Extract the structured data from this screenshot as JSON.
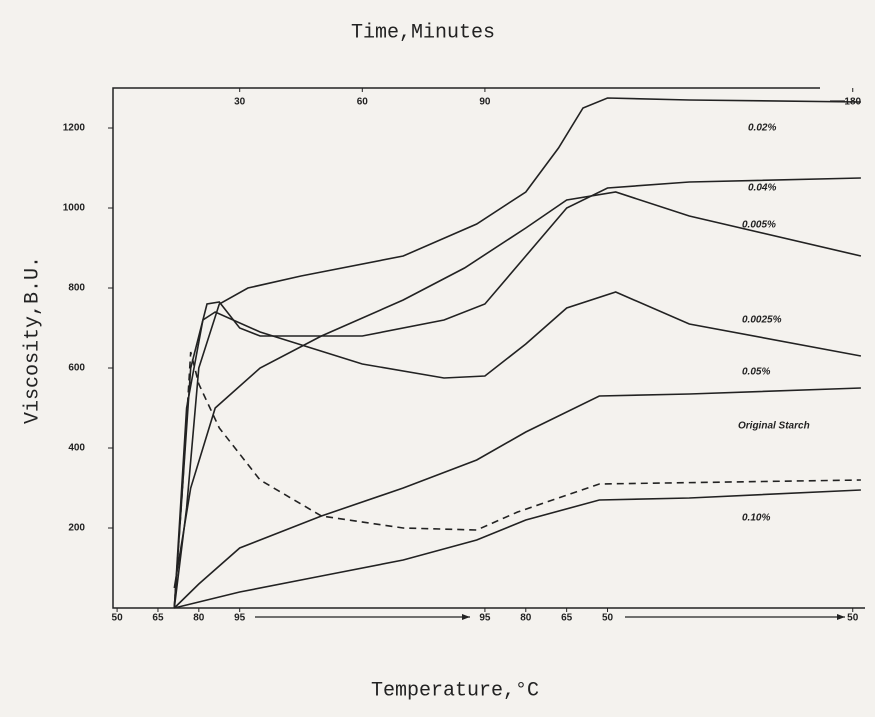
{
  "chart_data": {
    "type": "line",
    "title": "Time,Minutes",
    "xlabel": "Temperature,°C",
    "ylabel": "Viscosity,B.U.",
    "xlim": [
      -1,
      183
    ],
    "ylim": [
      0,
      1300
    ],
    "xticks": [
      {
        "value": 0,
        "label": "50"
      },
      {
        "value": 10,
        "label": "65"
      },
      {
        "value": 20,
        "label": "80"
      },
      {
        "value": 30,
        "label": "95"
      },
      {
        "value": 90,
        "label": "95"
      },
      {
        "value": 100,
        "label": "80"
      },
      {
        "value": 110,
        "label": "65"
      },
      {
        "value": 120,
        "label": "50"
      },
      {
        "value": 180,
        "label": "50"
      }
    ],
    "x2ticks": [
      30,
      60,
      90,
      180
    ],
    "yticks": [
      200,
      400,
      600,
      800,
      1000,
      1200
    ],
    "series": [
      {
        "name": "0.02%",
        "color": "#222",
        "dashed": false,
        "x": [
          14,
          17,
          20,
          25,
          32,
          45,
          70,
          88,
          100,
          108,
          114,
          120,
          140,
          182
        ],
        "values": [
          0,
          250,
          600,
          760,
          800,
          830,
          880,
          960,
          1040,
          1150,
          1250,
          1275,
          1270,
          1265
        ]
      },
      {
        "name": "0.04%",
        "color": "#222",
        "dashed": false,
        "x": [
          14,
          18,
          22,
          25,
          30,
          35,
          60,
          80,
          90,
          100,
          110,
          120,
          140,
          182
        ],
        "values": [
          0,
          600,
          760,
          765,
          700,
          680,
          680,
          720,
          760,
          880,
          1000,
          1050,
          1065,
          1075
        ]
      },
      {
        "name": "0.005%",
        "color": "#222",
        "dashed": false,
        "x": [
          14,
          18,
          24,
          35,
          50,
          70,
          85,
          100,
          110,
          122,
          140,
          182
        ],
        "values": [
          50,
          300,
          500,
          600,
          680,
          770,
          850,
          950,
          1020,
          1040,
          980,
          880
        ]
      },
      {
        "name": "0.0025%",
        "color": "#222",
        "dashed": false,
        "x": [
          14,
          17,
          21,
          24,
          35,
          60,
          80,
          90,
          100,
          110,
          122,
          140,
          182
        ],
        "values": [
          0,
          500,
          720,
          740,
          690,
          610,
          575,
          580,
          660,
          750,
          790,
          710,
          630
        ]
      },
      {
        "name": "0.05%",
        "color": "#222",
        "dashed": false,
        "x": [
          14,
          20,
          30,
          50,
          70,
          88,
          100,
          118,
          140,
          182
        ],
        "values": [
          0,
          60,
          150,
          230,
          300,
          370,
          440,
          530,
          535,
          550
        ]
      },
      {
        "name": "Original Starch",
        "color": "#222",
        "dashed": true,
        "x": [
          14,
          16,
          18,
          20,
          25,
          35,
          50,
          70,
          88,
          98,
          118,
          182
        ],
        "values": [
          0,
          300,
          640,
          560,
          450,
          320,
          230,
          200,
          195,
          240,
          310,
          320
        ]
      },
      {
        "name": "0.10%",
        "color": "#222",
        "dashed": false,
        "x": [
          14,
          30,
          50,
          70,
          88,
          100,
          118,
          140,
          182
        ],
        "values": [
          0,
          40,
          80,
          120,
          170,
          220,
          270,
          275,
          295
        ]
      }
    ]
  }
}
